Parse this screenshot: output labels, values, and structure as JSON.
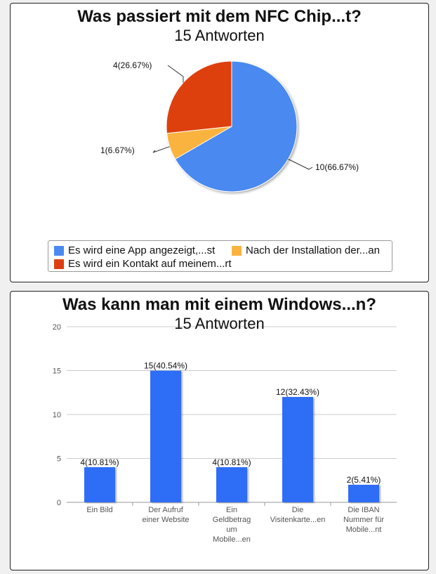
{
  "colors": {
    "blue": "#4a89f0",
    "orange": "#fbb33f",
    "red": "#dd4010",
    "bar": "#2d6df6"
  },
  "pie_panel": {
    "title": "Was passiert mit dem NFC Chip...t?",
    "subtitle": "15 Antworten"
  },
  "bar_panel": {
    "title": "Was kann man mit einem Windows...n?",
    "subtitle": "15 Antworten"
  },
  "chart_data": [
    {
      "type": "pie",
      "title": "Was passiert mit dem NFC Chip...t?",
      "subtitle": "15 Antworten",
      "slices": [
        {
          "name": "Es wird eine App angezeigt,...st",
          "value": 10,
          "label": "10(66.67%)",
          "color": "#4a89f0"
        },
        {
          "name": "Nach der Installation der...an",
          "value": 1,
          "label": "1(6.67%)",
          "color": "#fbb33f"
        },
        {
          "name": "Es wird ein Kontakt auf meinem...rt",
          "value": 4,
          "label": "4(26.67%)",
          "color": "#dd4010"
        }
      ],
      "legend": "bottom"
    },
    {
      "type": "bar",
      "title": "Was kann man mit einem Windows...n?",
      "subtitle": "15 Antworten",
      "categories": [
        [
          "Ein Bild"
        ],
        [
          "Der Aufruf",
          "einer Website"
        ],
        [
          "Ein",
          "Geldbetrag",
          "um",
          "Mobile...en"
        ],
        [
          "Die",
          "Visitenkarte...en"
        ],
        [
          "Die IBAN",
          "Nummer für",
          "Mobile...nt"
        ]
      ],
      "values": [
        4,
        15,
        4,
        12,
        2
      ],
      "data_labels": [
        "4(10.81%)",
        "15(40.54%)",
        "4(10.81%)",
        "12(32.43%)",
        "2(5.41%)"
      ],
      "yticks": [
        "0",
        "5",
        "10",
        "15",
        "20"
      ],
      "ylim": [
        0,
        20
      ],
      "grid": true
    }
  ]
}
